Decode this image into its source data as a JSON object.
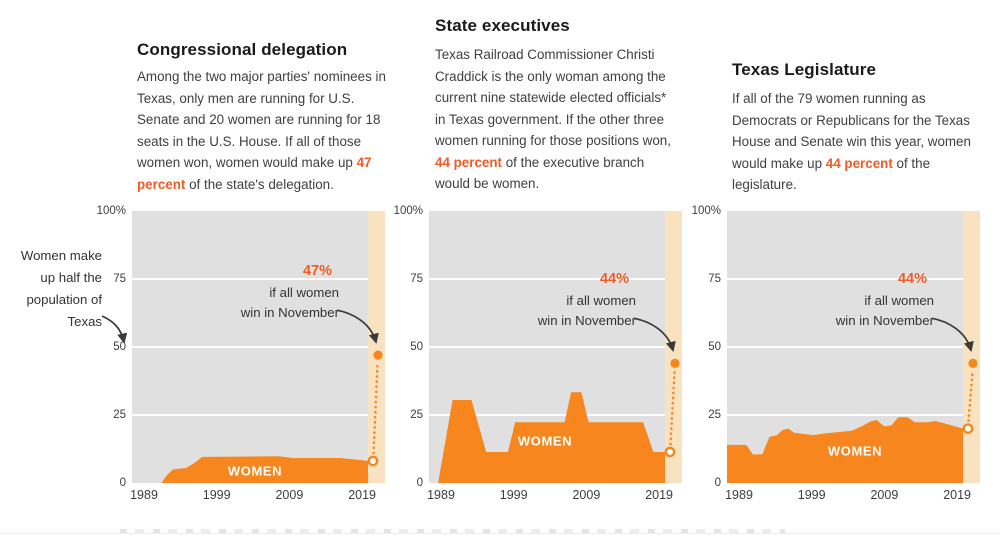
{
  "axis": {
    "y_ticks": [
      "100%",
      "75",
      "50",
      "25",
      "0"
    ],
    "y_tick_pcts": [
      100,
      75,
      50,
      25,
      0
    ],
    "x_ticks": [
      "1989",
      "1999",
      "2009",
      "2019"
    ],
    "x_tick_years": [
      1989,
      1999,
      2009,
      2019
    ]
  },
  "colors": {
    "area_orange": "#f6861d",
    "emphasis_orange": "#f05b24",
    "plot_bg": "#e0e0e0",
    "projection_band": "#f9e2c0",
    "gridline": "#ffffff",
    "annotation_dark": "#333333",
    "arrow": "#3a3a3a"
  },
  "left_annotation": {
    "lines": [
      "Women make",
      "up half the",
      "population of",
      "Texas"
    ]
  },
  "chart_data": [
    {
      "type": "area",
      "title": "Congressional delegation",
      "description": {
        "before": "Among the two major parties' nominees in Texas, only men are running for U.S. Senate and 20 women are running for 18 seats in the U.S. House. If all of those women won, women would make up ",
        "emphasis": "47 percent",
        "after": " of the state's delegation."
      },
      "series_name": "WOMEN",
      "xlabel": "",
      "ylabel": "",
      "ylim": [
        0,
        100
      ],
      "x_range": [
        1989,
        2019
      ],
      "points": [
        [
          1989,
          0
        ],
        [
          1991.4,
          0
        ],
        [
          1992.2,
          3
        ],
        [
          1993,
          5
        ],
        [
          1994.8,
          5.5
        ],
        [
          1996,
          7.5
        ],
        [
          1997,
          9.6
        ],
        [
          2007.5,
          9.8
        ],
        [
          2009.5,
          9.2
        ],
        [
          2016,
          9.2
        ],
        [
          2019,
          8.4
        ],
        [
          2020.2,
          8.1
        ]
      ],
      "current_pct": 8.1,
      "projected": {
        "pct": 47,
        "label": "47%",
        "note_line1": "if all women",
        "note_line2": "win in November"
      }
    },
    {
      "type": "area",
      "title": "State executives",
      "description": {
        "before": "Texas Railroad Commissioner Christi Craddick is the only woman among the current nine statewide elected officials* in Texas government. If the other three women running for those positions won, ",
        "emphasis": "44 percent",
        "after": " of the executive branch would be women."
      },
      "series_name": "WOMEN",
      "xlabel": "",
      "ylabel": "",
      "ylim": [
        0,
        100
      ],
      "x_range": [
        1989,
        2019
      ],
      "points": [
        [
          1988.6,
          0
        ],
        [
          1990.6,
          30.5
        ],
        [
          1993.2,
          30.5
        ],
        [
          1995.2,
          11.4
        ],
        [
          1998.2,
          11.4
        ],
        [
          1999.2,
          22.3
        ],
        [
          2006,
          22.3
        ],
        [
          2006.9,
          33.4
        ],
        [
          2008.3,
          33.4
        ],
        [
          2009.3,
          22.3
        ],
        [
          2016.8,
          22.3
        ],
        [
          2018.2,
          11.4
        ],
        [
          2020.2,
          11.4
        ]
      ],
      "current_pct": 11.4,
      "projected": {
        "pct": 44,
        "label": "44%",
        "note_line1": "if all women",
        "note_line2": "win in November"
      }
    },
    {
      "type": "area",
      "title": "Texas Legislature",
      "description": {
        "before": "If all of the 79 women running as Democrats or Republicans for the Texas House and Senate win this year, women would make up ",
        "emphasis": "44 percent",
        "after": " of the legislature."
      },
      "series_name": "WOMEN",
      "xlabel": "",
      "ylabel": "",
      "ylim": [
        0,
        100
      ],
      "x_range": [
        1989,
        2019
      ],
      "points": [
        [
          1988.5,
          14
        ],
        [
          1990,
          14
        ],
        [
          1990.9,
          10.5
        ],
        [
          1992.2,
          10.5
        ],
        [
          1993.2,
          17
        ],
        [
          1994.2,
          17.5
        ],
        [
          1995,
          19.5
        ],
        [
          1995.8,
          20
        ],
        [
          1996.6,
          18.5
        ],
        [
          1998,
          18
        ],
        [
          1999.2,
          17.6
        ],
        [
          2001,
          18.3
        ],
        [
          2003,
          18.8
        ],
        [
          2004.5,
          19.2
        ],
        [
          2006,
          21
        ],
        [
          2007,
          22.5
        ],
        [
          2007.9,
          23.2
        ],
        [
          2009,
          20.8
        ],
        [
          2010,
          21.2
        ],
        [
          2010.9,
          24.2
        ],
        [
          2012.2,
          24.2
        ],
        [
          2013.2,
          22.3
        ],
        [
          2015,
          22.3
        ],
        [
          2016,
          22.8
        ],
        [
          2017.2,
          22
        ],
        [
          2018.2,
          21.2
        ],
        [
          2020.2,
          20
        ]
      ],
      "current_pct": 20,
      "projected": {
        "pct": 44,
        "label": "44%",
        "note_line1": "if all women",
        "note_line2": "win in November"
      }
    }
  ]
}
